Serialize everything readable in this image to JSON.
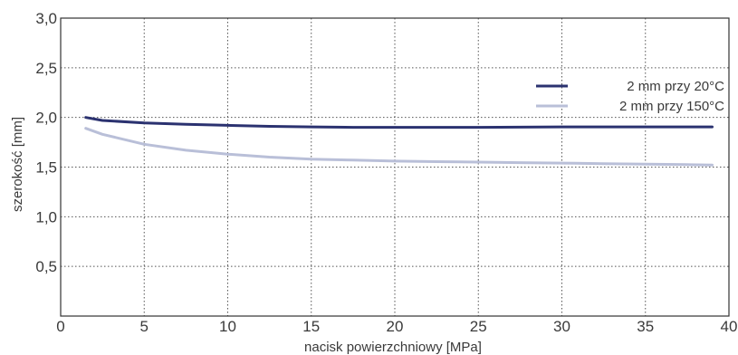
{
  "chart_data": {
    "type": "line",
    "xlabel": "nacisk powierzchniowy [MPa]",
    "ylabel": "szerokość [mm]",
    "xlim": [
      0,
      40
    ],
    "ylim": [
      0,
      3.0
    ],
    "x_ticks": [
      {
        "value": 0,
        "label": "0"
      },
      {
        "value": 5,
        "label": "5"
      },
      {
        "value": 10,
        "label": "10"
      },
      {
        "value": 15,
        "label": "15"
      },
      {
        "value": 20,
        "label": "20"
      },
      {
        "value": 25,
        "label": "25"
      },
      {
        "value": 30,
        "label": "30"
      },
      {
        "value": 35,
        "label": "35"
      },
      {
        "value": 40,
        "label": "40"
      }
    ],
    "y_ticks": [
      {
        "value": 0.5,
        "label": "0,5"
      },
      {
        "value": 1.0,
        "label": "1,0"
      },
      {
        "value": 1.5,
        "label": "1,5"
      },
      {
        "value": 2.0,
        "label": "2,0"
      },
      {
        "value": 2.5,
        "label": "2,5"
      },
      {
        "value": 3.0,
        "label": "3,0"
      }
    ],
    "grid": true,
    "legend_position": "top-right",
    "series": [
      {
        "name": "2 mm przy 20°C",
        "color": "#2b3270",
        "x": [
          1.5,
          2.5,
          5,
          7.5,
          10,
          12.5,
          15,
          17.5,
          20,
          22.5,
          25,
          27.5,
          30,
          32.5,
          35,
          37.5,
          39
        ],
        "y": [
          2.0,
          1.97,
          1.945,
          1.93,
          1.92,
          1.91,
          1.905,
          1.9,
          1.9,
          1.9,
          1.9,
          1.902,
          1.905,
          1.905,
          1.905,
          1.905,
          1.905
        ]
      },
      {
        "name": "2 mm przy 150°C",
        "color": "#b9bfd8",
        "x": [
          1.5,
          2.5,
          5,
          7.5,
          10,
          12.5,
          15,
          17.5,
          20,
          22.5,
          25,
          27.5,
          30,
          32.5,
          35,
          37.5,
          39
        ],
        "y": [
          1.89,
          1.83,
          1.73,
          1.67,
          1.63,
          1.6,
          1.58,
          1.57,
          1.56,
          1.555,
          1.55,
          1.545,
          1.54,
          1.535,
          1.53,
          1.525,
          1.52
        ]
      }
    ]
  }
}
